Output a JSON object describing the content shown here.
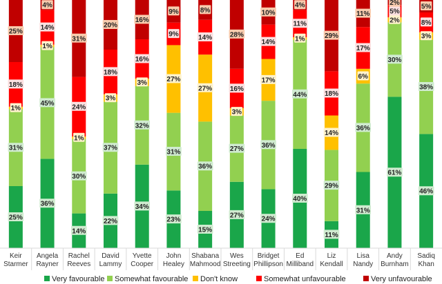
{
  "chart_data": {
    "type": "bar",
    "stacked": true,
    "percent": true,
    "categories": [
      [
        "Keir",
        "Starmer"
      ],
      [
        "Angela",
        "Rayner"
      ],
      [
        "Rachel",
        "Reeves"
      ],
      [
        "David",
        "Lammy"
      ],
      [
        "Yvette",
        "Cooper"
      ],
      [
        "John",
        "Healey"
      ],
      [
        "Shabana",
        "Mahmood"
      ],
      [
        "Wes",
        "Streeting"
      ],
      [
        "Bridget",
        "Phillipson"
      ],
      [
        "Ed",
        "Milliband"
      ],
      [
        "Liz",
        "Kendall"
      ],
      [
        "Lisa",
        "Nandy"
      ],
      [
        "Andy",
        "Burnham"
      ],
      [
        "Sadiq",
        "Khan"
      ]
    ],
    "series": [
      {
        "name": "Very favourable",
        "color": "#1aa64a",
        "label_bg": "#d0ebd0",
        "values": [
          25,
          36,
          14,
          22,
          34,
          23,
          15,
          27,
          24,
          40,
          11,
          31,
          61,
          46
        ]
      },
      {
        "name": "Somewhat favourable",
        "color": "#92d050",
        "label_bg": "#d0ebd0",
        "values": [
          31,
          45,
          30,
          37,
          32,
          31,
          36,
          27,
          36,
          44,
          29,
          36,
          30,
          38
        ]
      },
      {
        "name": "Don't know",
        "color": "#ffc000",
        "label_bg": "#fff2cc",
        "values": [
          1,
          1,
          1,
          3,
          3,
          27,
          27,
          3,
          17,
          1,
          14,
          6,
          2,
          3
        ]
      },
      {
        "name": "Somewhat unfavourable",
        "color": "#ff0000",
        "label_bg": "#fbe0e0",
        "values": [
          18,
          14,
          24,
          18,
          16,
          9,
          14,
          16,
          14,
          11,
          18,
          17,
          5,
          8
        ]
      },
      {
        "name": "Very unfavourable",
        "color": "#c00000",
        "label_bg": "#f8cbad",
        "values": [
          25,
          4,
          31,
          20,
          16,
          9,
          8,
          28,
          10,
          4,
          29,
          11,
          2,
          5
        ]
      }
    ],
    "ylim": [
      0,
      100
    ],
    "legend_position": "bottom"
  }
}
